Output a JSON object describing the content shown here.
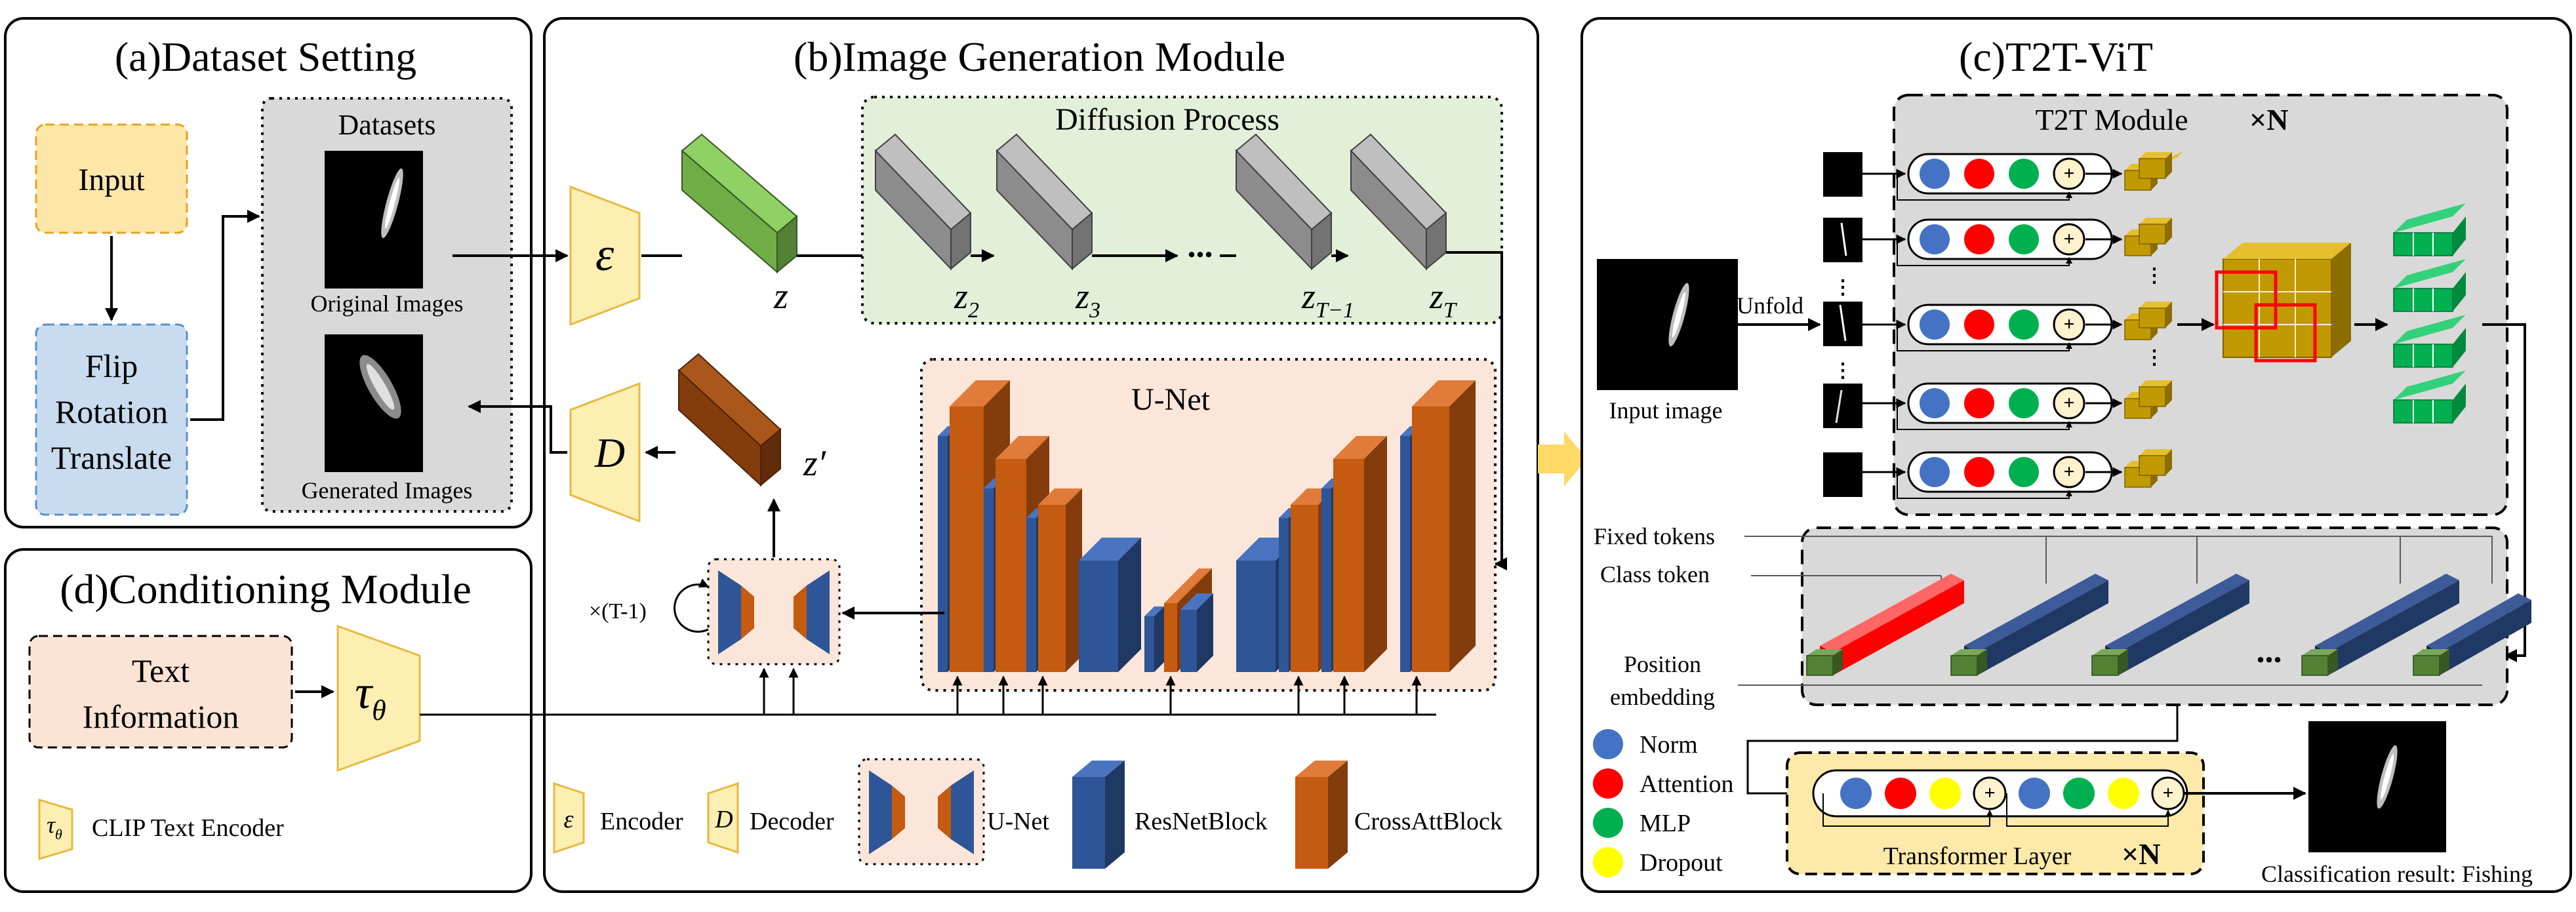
{
  "panel_a": {
    "title": "(a)Dataset Setting",
    "input_label": "Input",
    "aug_line1": "Flip",
    "aug_line2": "Rotation",
    "aug_line3": "Translate",
    "datasets_title": "Datasets",
    "original_caption": "Original Images",
    "generated_caption": "Generated Images"
  },
  "panel_b": {
    "title": "(b)Image Generation Module",
    "diffusion_title": "Diffusion Process",
    "unet_title": "U-Net",
    "encoder_symbol": "ε",
    "decoder_symbol": "D",
    "z_label": "z",
    "z_prime_label": "z′",
    "z2": "z",
    "z2_sub": "2",
    "z3": "z",
    "z3_sub": "3",
    "ellipsis": "...",
    "zT1": "z",
    "zT1_sub": "T−1",
    "zT": "z",
    "zT_sub": "T",
    "repeat_label": "×(T-1)",
    "legend": {
      "encoder_symbol": "ε",
      "encoder": "Encoder",
      "decoder_symbol": "D",
      "decoder": "Decoder",
      "unet": "U-Net",
      "resnet": "ResNetBlock",
      "crossatt": "CrossAttBlock"
    }
  },
  "panel_c": {
    "title": "(c)T2T-ViT",
    "t2t_module": "T2T Module",
    "t2t_repeat": "×N",
    "input_image": "Input image",
    "unfold": "Unfold",
    "fixed_tokens": "Fixed tokens",
    "class_token": "Class token",
    "position_line1": "Position",
    "position_line2": "embedding",
    "ellipsis": "...",
    "transformer_layer": "Transformer Layer",
    "transformer_repeat": "×N",
    "result": "Classification result: Fishing",
    "legend": {
      "norm": "Norm",
      "attention": "Attention",
      "mlp": "MLP",
      "dropout": "Dropout"
    },
    "plus": "+"
  },
  "panel_d": {
    "title": "(d)Conditioning Module",
    "text_line1": "Text",
    "text_line2": "Information",
    "tau_symbol": "τ",
    "tau_sub": "θ",
    "legend_symbol": "τ",
    "legend_sub": "θ",
    "legend_label": "CLIP Text Encoder"
  },
  "colors": {
    "input_fill": "#fde6a8",
    "input_stroke": "#e6a321",
    "aug_fill": "#c9dcef",
    "aug_stroke": "#5b8fc7",
    "encoder_fill": "#fdeeb2",
    "encoder_stroke": "#e6b940",
    "diffusion_bg": "#e3efd9",
    "unet_bg": "#fbe6d9",
    "resnet_blue": "#2e5597",
    "crossatt_orange": "#c55a11",
    "latent_green": "#70ad47",
    "latent_brown": "#843c0c",
    "gray_block": "#8c8c8c",
    "t2t_bg": "#d9d9d9",
    "token_gold": "#c09a00",
    "token_green": "#00b050",
    "token_navy": "#1f3864",
    "class_red": "#ff0000",
    "pos_green": "#548235",
    "norm_blue": "#4472c4",
    "attention_red": "#ff0000",
    "mlp_green": "#00b050",
    "dropout_yellow": "#ffff00",
    "plus_fill": "#fff2cc",
    "transformer_bg": "#fde9a9",
    "big_arrow": "#ffd966"
  }
}
